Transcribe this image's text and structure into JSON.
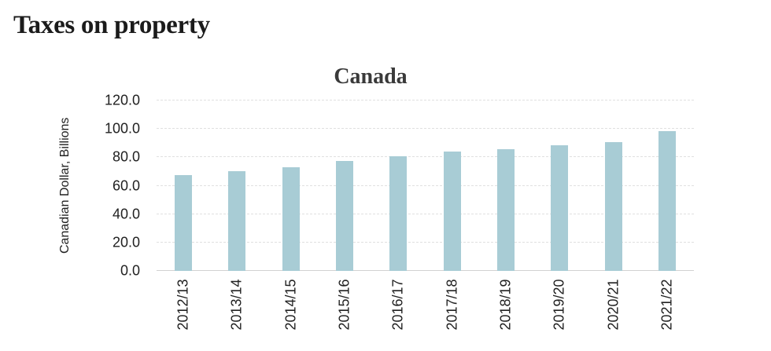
{
  "page": {
    "title": "Taxes on property"
  },
  "chart_data": {
    "type": "bar",
    "title": "Canada",
    "xlabel": "",
    "ylabel": "Canadian Dollar, Billions",
    "categories": [
      "2012/13",
      "2013/14",
      "2014/15",
      "2015/16",
      "2016/17",
      "2017/18",
      "2018/19",
      "2019/20",
      "2020/21",
      "2021/22"
    ],
    "values": [
      67.6,
      70.3,
      73.0,
      77.3,
      80.9,
      84.1,
      85.5,
      88.3,
      90.5,
      98.4
    ],
    "ylim": [
      0,
      120
    ],
    "ytick_step": 20,
    "ytick_labels": [
      "0.0",
      "20.0",
      "40.0",
      "60.0",
      "80.0",
      "100.0",
      "120.0"
    ],
    "grid": "horizontal-dashed",
    "legend_position": "none",
    "bar_color": "#a8ccd5"
  },
  "colors": {
    "background": "#ffffff",
    "bar": "#a8ccd5",
    "gridline": "#e0e0e0",
    "axis_line": "#d2d2d2",
    "title_text": "#1b1b1b",
    "chart_title_text": "#3a3a3a",
    "tick_text": "#212121"
  }
}
